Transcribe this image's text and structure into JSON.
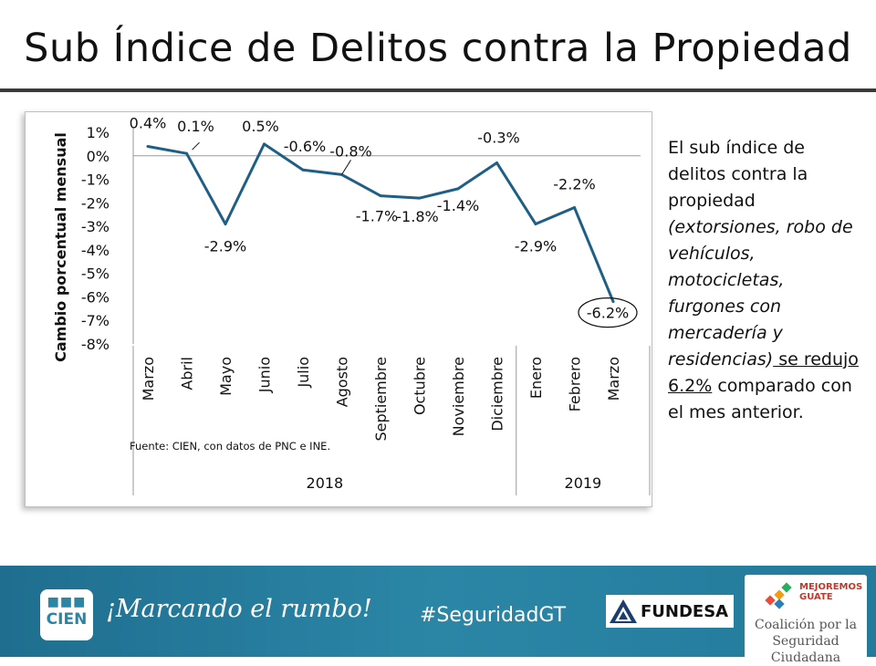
{
  "title": "Sub Índice de Delitos contra la Propiedad",
  "side_text": {
    "p1": "El sub índice de delitos contra la propiedad ",
    "p2": "(extorsiones, robo de vehículos, motocicletas, furgones con mercadería y residencias)",
    "p3": " se redujo 6.2%",
    "p4": " comparado con el mes anterior."
  },
  "chart_data": {
    "type": "line",
    "title": "",
    "ylabel": "Cambio porcentual mensual",
    "ylim": [
      -8,
      1
    ],
    "yticks": [
      "1%",
      "0%",
      "-1%",
      "-2%",
      "-3%",
      "-4%",
      "-5%",
      "-6%",
      "-7%",
      "-8%"
    ],
    "categories": [
      "Marzo",
      "Abril",
      "Mayo",
      "Junio",
      "Julio",
      "Agosto",
      "Septiembre",
      "Octubre",
      "Noviembre",
      "Diciembre",
      "Enero",
      "Febrero",
      "Marzo"
    ],
    "values": [
      0.4,
      0.1,
      -2.9,
      0.5,
      -0.6,
      -0.8,
      -1.7,
      -1.8,
      -1.4,
      -0.3,
      -2.9,
      -2.2,
      -6.2
    ],
    "data_labels": [
      "0.4%",
      "0.1%",
      "-2.9%",
      "0.5%",
      "-0.6%",
      "-0.8%",
      "-1.7%",
      "-1.8%",
      "-1.4%",
      "-0.3%",
      "-2.9%",
      "-2.2%",
      "-6.2%"
    ],
    "year_groups": [
      {
        "label": "2018",
        "count": 10
      },
      {
        "label": "2019",
        "count": 3
      }
    ],
    "source": "Fuente: CIEN, con datos de PNC e INE.",
    "line_color": "#1f5f86",
    "highlight_index": 12
  },
  "footer": {
    "logo_text": "CIEN",
    "slogan": "¡Marcando el rumbo!",
    "hashtag": "#SeguridadGT",
    "fundesa": "FUNDESA",
    "mejoremos_1": "MEJOREMOS",
    "mejoremos_2": "GUATE",
    "coalicion_1": "Coalición por la",
    "coalicion_2": "Seguridad Ciudadana"
  }
}
